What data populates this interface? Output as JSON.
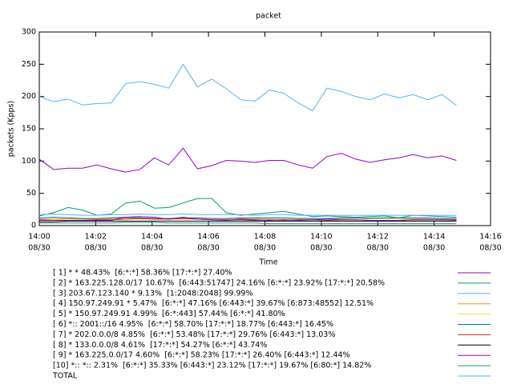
{
  "chart_data": {
    "type": "line",
    "title": "packet",
    "x_label": "Time",
    "y_label": "packets (Kpps)",
    "x": [
      0,
      0.51,
      1.02,
      1.53,
      2.04,
      2.55,
      3.06,
      3.57,
      4.08,
      4.59,
      5.1,
      5.61,
      6.12,
      6.63,
      7.14,
      7.65,
      8.16,
      8.67,
      9.18,
      9.69,
      10.2,
      10.71,
      11.22,
      11.73,
      12.24,
      12.75,
      13.26,
      13.77,
      14.28,
      14.79
    ],
    "xlim": [
      0,
      16
    ],
    "xticks": [
      {
        "value": 0,
        "label": [
          "14:00",
          "08/30"
        ]
      },
      {
        "value": 2,
        "label": [
          "14:02",
          "08/30"
        ]
      },
      {
        "value": 4,
        "label": [
          "14:04",
          "08/30"
        ]
      },
      {
        "value": 6,
        "label": [
          "14:06",
          "08/30"
        ]
      },
      {
        "value": 8,
        "label": [
          "14:08",
          "08/30"
        ]
      },
      {
        "value": 10,
        "label": [
          "14:10",
          "08/30"
        ]
      },
      {
        "value": 12,
        "label": [
          "14:12",
          "08/30"
        ]
      },
      {
        "value": 14,
        "label": [
          "14:14",
          "08/30"
        ]
      },
      {
        "value": 16,
        "label": [
          "14:16",
          "08/30"
        ]
      }
    ],
    "ylim": [
      0,
      300
    ],
    "yticks": [
      0,
      50,
      100,
      150,
      200,
      250,
      300
    ],
    "series": [
      {
        "name": "[ 1] * * 48.43%  [6:*:*] 58.36% [17:*:*] 27.40%",
        "color": "#9400d3",
        "values": [
          103,
          87,
          89,
          89,
          94,
          88,
          83,
          87,
          105,
          94,
          120,
          88,
          93,
          101,
          100,
          98,
          101,
          101,
          94,
          89,
          107,
          112,
          103,
          98,
          102,
          105,
          110,
          105,
          108,
          101
        ]
      },
      {
        "name": "[ 2] * 163.225.128.0/17 10.67%  [6:443:51747] 24.16% [6:*:*] 23.92% [17:*:*] 20.58%",
        "color": "#009e73",
        "values": [
          15,
          20,
          28,
          24,
          16,
          18,
          35,
          38,
          27,
          28,
          35,
          42,
          42,
          20,
          16,
          18,
          20,
          22,
          18,
          14,
          15,
          14,
          13,
          14,
          15,
          12,
          16,
          15,
          14,
          13
        ]
      },
      {
        "name": "[ 3] 203.67.123.140 * 9.13%  [1:2048:2048] 99.99%",
        "color": "#56b4e9",
        "values": [
          17,
          18,
          17,
          16,
          16,
          17,
          17,
          18,
          17,
          17,
          18,
          17,
          17,
          17,
          17,
          16,
          17,
          17,
          16,
          16,
          16,
          16,
          16,
          16,
          16,
          16,
          16,
          16,
          16,
          16
        ]
      },
      {
        "name": "[ 4] 150.97.249.91 * 5.47%  [6:*:*] 47.16% [6:443:*] 39.67% [6:873:48552] 12.51%",
        "color": "#e69f00",
        "values": [
          10,
          10,
          11,
          10,
          10,
          11,
          12,
          12,
          11,
          11,
          12,
          12,
          11,
          10,
          11,
          11,
          12,
          12,
          11,
          11,
          10,
          11,
          12,
          12,
          12,
          12,
          11,
          11,
          11,
          11
        ]
      },
      {
        "name": "[ 5] * 150.97.249.91 4.99%  [6:*:443] 57.44% [6:*:*] 41.80%",
        "color": "#f0e442",
        "values": [
          9,
          9,
          9,
          9,
          9,
          10,
          10,
          10,
          10,
          10,
          10,
          10,
          10,
          10,
          10,
          10,
          10,
          10,
          10,
          10,
          10,
          10,
          11,
          11,
          10,
          10,
          10,
          10,
          10,
          10
        ]
      },
      {
        "name": "[ 6] *:: 2001::/16 4.95%  [6:*:*] 58.70% [17:*:*] 18.77% [6:443:*] 16.45%",
        "color": "#0072b2",
        "values": [
          12,
          13,
          12,
          11,
          11,
          12,
          13,
          12,
          11,
          11,
          12,
          12,
          11,
          11,
          12,
          12,
          12,
          12,
          11,
          11,
          11,
          12,
          12,
          11,
          12,
          12,
          12,
          12,
          11,
          11
        ]
      },
      {
        "name": "[ 7] * 202.0.0.0/8 4.85%  [6:*:*] 53.48% [17:*:*] 29.76% [6:443:*] 13.03%",
        "color": "#e51e10",
        "values": [
          8,
          8,
          8,
          8,
          9,
          9,
          10,
          11,
          10,
          10,
          11,
          10,
          9,
          9,
          9,
          8,
          9,
          8,
          9,
          9,
          8,
          9,
          9,
          8,
          8,
          8,
          9,
          9,
          9,
          8
        ]
      },
      {
        "name": "[ 8] * 133.0.0.0/8 4.61%  [17:*:*] 54.27% [6:*:*] 43.74%",
        "color": "#000000",
        "values": [
          6,
          6,
          7,
          7,
          7,
          7,
          7,
          7,
          7,
          7,
          7,
          7,
          7,
          7,
          7,
          7,
          7,
          7,
          7,
          7,
          7,
          7,
          7,
          7,
          7,
          7,
          7,
          7,
          7,
          7
        ]
      },
      {
        "name": "[ 9] * 163.225.0.0/17 4.60%  [6:*:*] 58.23% [17:*:*] 26.40% [6:443:*] 12.44%",
        "color": "#9400d3",
        "values": [
          9,
          8,
          8,
          8,
          8,
          8,
          13,
          14,
          13,
          10,
          13,
          10,
          9,
          8,
          10,
          9,
          8,
          9,
          8,
          9,
          10,
          9,
          9,
          8,
          8,
          8,
          9,
          9,
          9,
          9
        ]
      },
      {
        "name": "[10] *:: *:: 2.31%  [6:*:*] 35.33% [6:443:*] 23.12% [17:*:*] 19.67% [6:80:*] 14.82%",
        "color": "#009e73",
        "values": [
          4,
          4,
          4,
          4,
          4,
          4,
          5,
          5,
          5,
          4,
          4,
          4,
          4,
          4,
          4,
          4,
          3,
          3,
          3,
          3,
          3,
          3,
          3,
          3,
          3,
          3,
          3,
          3,
          3,
          3
        ]
      },
      {
        "name": "TOTAL",
        "color": "#56b4e9",
        "values": [
          200,
          192,
          196,
          187,
          189,
          190,
          220,
          223,
          219,
          213,
          250,
          215,
          227,
          212,
          195,
          193,
          210,
          205,
          190,
          178,
          213,
          208,
          200,
          195,
          204,
          198,
          203,
          195,
          203,
          186
        ]
      }
    ]
  }
}
